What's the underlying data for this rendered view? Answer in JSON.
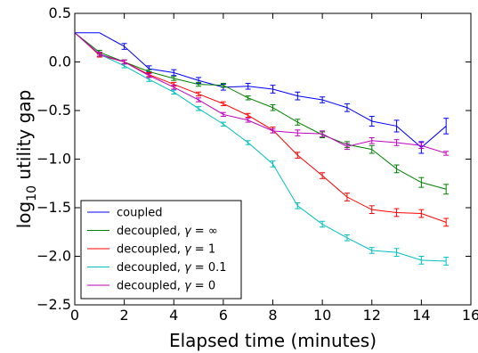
{
  "chart_data": {
    "type": "line",
    "title": "",
    "xlabel": "Elapsed time (minutes)",
    "ylabel_parts": {
      "pre": "log",
      "sub": "10",
      "post": " utility gap"
    },
    "xlim": [
      0,
      16
    ],
    "ylim": [
      -2.5,
      0.5
    ],
    "x_ticks": [
      0,
      2,
      4,
      6,
      8,
      10,
      12,
      14,
      16
    ],
    "x_tick_labels": [
      "0",
      "2",
      "4",
      "6",
      "8",
      "10",
      "12",
      "14",
      "16"
    ],
    "y_ticks": [
      0.5,
      0.0,
      -0.5,
      -1.0,
      -1.5,
      -2.0,
      -2.5
    ],
    "y_tick_labels": [
      "0.5",
      "0.0",
      "−0.5",
      "−1.0",
      "−1.5",
      "−2.0",
      "−2.5"
    ],
    "grid": false,
    "legend_position": "lower-left",
    "x": [
      0,
      1,
      2,
      3,
      4,
      5,
      6,
      7,
      8,
      9,
      10,
      11,
      12,
      13,
      14,
      15
    ],
    "series": [
      {
        "name": "coupled",
        "legend_parts": {
          "text": "coupled",
          "gamma": ""
        },
        "color": "#0000ff",
        "values": [
          0.3,
          0.3,
          0.16,
          -0.07,
          -0.11,
          -0.19,
          -0.26,
          -0.25,
          -0.28,
          -0.35,
          -0.39,
          -0.47,
          -0.61,
          -0.66,
          -0.88,
          -0.66
        ],
        "errors": [
          0.0,
          0.0,
          0.03,
          0.03,
          0.03,
          0.03,
          0.03,
          0.03,
          0.04,
          0.04,
          0.03,
          0.04,
          0.05,
          0.06,
          0.06,
          0.08
        ]
      },
      {
        "name": "decoupled, γ = ∞",
        "legend_parts": {
          "text": "decoupled, ",
          "gamma": "∞"
        },
        "color": "#008000",
        "values": [
          0.3,
          0.1,
          0.0,
          -0.1,
          -0.17,
          -0.23,
          -0.24,
          -0.37,
          -0.47,
          -0.62,
          -0.75,
          -0.85,
          -0.9,
          -1.1,
          -1.24,
          -1.31
        ],
        "errors": [
          0.0,
          0.02,
          0.02,
          0.02,
          0.02,
          0.02,
          0.02,
          0.02,
          0.03,
          0.03,
          0.03,
          0.03,
          0.04,
          0.04,
          0.05,
          0.05
        ]
      },
      {
        "name": "decoupled, γ = 1",
        "legend_parts": {
          "text": "decoupled, ",
          "gamma": "1"
        },
        "color": "#ff0000",
        "values": [
          0.3,
          0.07,
          0.0,
          -0.13,
          -0.23,
          -0.33,
          -0.43,
          -0.55,
          -0.7,
          -0.96,
          -1.17,
          -1.39,
          -1.52,
          -1.55,
          -1.56,
          -1.65
        ],
        "errors": [
          0.0,
          0.02,
          0.02,
          0.02,
          0.02,
          0.02,
          0.02,
          0.02,
          0.03,
          0.03,
          0.03,
          0.04,
          0.04,
          0.04,
          0.04,
          0.04
        ]
      },
      {
        "name": "decoupled, γ = 0.1",
        "legend_parts": {
          "text": "decoupled, ",
          "gamma": "0.1"
        },
        "color": "#00bfbf",
        "values": [
          0.3,
          0.08,
          -0.04,
          -0.18,
          -0.31,
          -0.48,
          -0.64,
          -0.83,
          -1.05,
          -1.48,
          -1.67,
          -1.81,
          -1.94,
          -1.96,
          -2.04,
          -2.05
        ],
        "errors": [
          0.0,
          0.02,
          0.02,
          0.02,
          0.02,
          0.02,
          0.02,
          0.02,
          0.03,
          0.03,
          0.03,
          0.03,
          0.03,
          0.04,
          0.04,
          0.04
        ]
      },
      {
        "name": "decoupled, γ = 0",
        "legend_parts": {
          "text": "decoupled, ",
          "gamma": "0"
        },
        "color": "#bf00bf",
        "values": [
          0.3,
          0.08,
          0.0,
          -0.14,
          -0.26,
          -0.39,
          -0.54,
          -0.6,
          -0.71,
          -0.73,
          -0.74,
          -0.87,
          -0.81,
          -0.83,
          -0.86,
          -0.94
        ],
        "errors": [
          0.0,
          0.02,
          0.02,
          0.02,
          0.02,
          0.02,
          0.02,
          0.02,
          0.02,
          0.03,
          0.03,
          0.03,
          0.03,
          0.03,
          0.03,
          0.02
        ]
      }
    ]
  }
}
